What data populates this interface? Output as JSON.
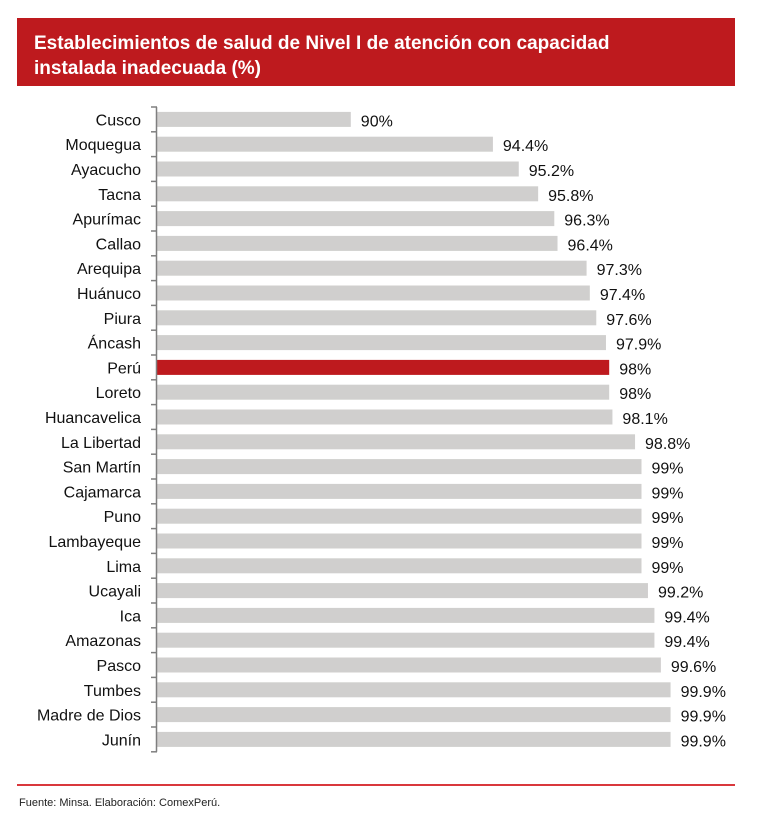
{
  "chart_data": {
    "type": "bar",
    "orientation": "horizontal",
    "title_lines": [
      "Establecimientos de salud de Nivel I de atención con capacidad",
      "instalada inadecuada (%)"
    ],
    "xlabel": "",
    "ylabel": "",
    "xlim": [
      84,
      100
    ],
    "grid": false,
    "categories": [
      "Cusco",
      "Moquegua",
      "Ayacucho",
      "Tacna",
      "Apurímac",
      "Callao",
      "Arequipa",
      "Huánuco",
      "Piura",
      "Áncash",
      "Perú",
      "Loreto",
      "Huancavelica",
      "La Libertad",
      "San Martín",
      "Cajamarca",
      "Puno",
      "Lambayeque",
      "Lima",
      "Ucayali",
      "Ica",
      "Amazonas",
      "Pasco",
      "Tumbes",
      "Madre de Dios",
      "Junín"
    ],
    "values": [
      90,
      94.4,
      95.2,
      95.8,
      96.3,
      96.4,
      97.3,
      97.4,
      97.6,
      97.9,
      98,
      98,
      98.1,
      98.8,
      99,
      99,
      99,
      99,
      99,
      99.2,
      99.4,
      99.4,
      99.6,
      99.9,
      99.9,
      99.9
    ],
    "value_labels": [
      "90%",
      "94.4%",
      "95.2%",
      "95.8%",
      "96.3%",
      "96.4%",
      "97.3%",
      "97.4%",
      "97.6%",
      "97.9%",
      "98%",
      "98%",
      "98.1%",
      "98.8%",
      "99%",
      "99%",
      "99%",
      "99%",
      "99%",
      "99.2%",
      "99.4%",
      "99.4%",
      "99.6%",
      "99.9%",
      "99.9%",
      "99.9%"
    ],
    "highlight_category": "Perú",
    "colors": {
      "bar": "#d0cfce",
      "highlight": "#be1a1e",
      "axis": "#7f7f7f",
      "header": "#be1a1e",
      "rule": "#d9383c"
    }
  },
  "footer": {
    "source": "Fuente: Minsa. Elaboración: ComexPerú."
  }
}
